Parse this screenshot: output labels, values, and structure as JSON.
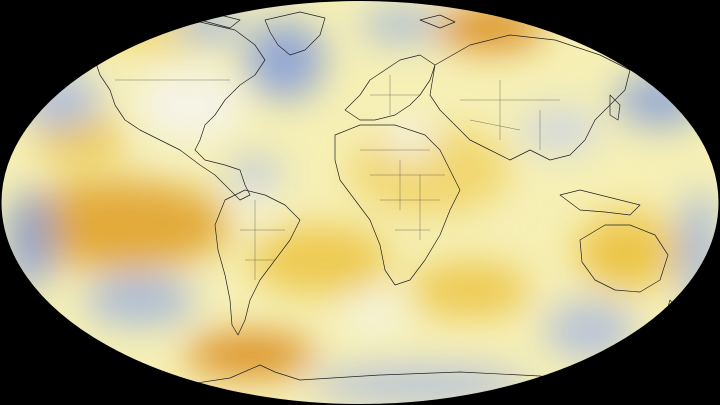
{
  "map": {
    "projection": "elliptical",
    "background_color": "#000000",
    "ocean_base_color": "#f6f0b6",
    "colors": {
      "warm_strong": "#d98a1e",
      "warm": "#ebbf3a",
      "warm_light": "#f5e07a",
      "neutral": "#f7f7f2",
      "cool_light": "#c5d0ea",
      "cool": "#8aa0d6"
    },
    "coastline_color": "#222222",
    "legend": null
  }
}
